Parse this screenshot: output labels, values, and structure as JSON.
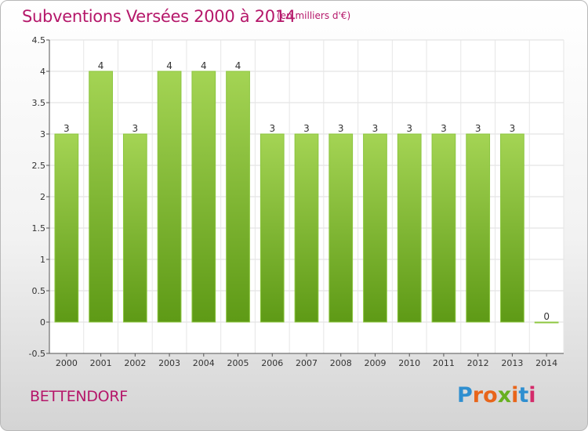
{
  "header": {
    "title": "Subventions Versées 2000 à 2014",
    "unit": "(en milliers d'€)"
  },
  "footer": {
    "commune": "BETTENDORF",
    "logo_text": "Proxiti"
  },
  "colors": {
    "title": "#b5176a",
    "bar_top": "#a4d454",
    "bar_bottom": "#5e9a16",
    "logo_letters": [
      "#2f8fd0",
      "#e8651a",
      "#e8651a",
      "#67b020",
      "#e8651a",
      "#2f8fd0",
      "#d42b6a"
    ]
  },
  "chart_data": {
    "type": "bar",
    "title": "Subventions Versées 2000 à 2014",
    "subtitle": "(en milliers d'€)",
    "categories": [
      "2000",
      "2001",
      "2002",
      "2003",
      "2004",
      "2005",
      "2006",
      "2007",
      "2008",
      "2009",
      "2010",
      "2011",
      "2012",
      "2013",
      "2014"
    ],
    "values": [
      3,
      4,
      3,
      4,
      4,
      4,
      3,
      3,
      3,
      3,
      3,
      3,
      3,
      3,
      0
    ],
    "data_labels": [
      "3",
      "4",
      "3",
      "4",
      "4",
      "4",
      "3",
      "3",
      "3",
      "3",
      "3",
      "3",
      "3",
      "3",
      "0"
    ],
    "yticks": [
      -0.5,
      0,
      0.5,
      1,
      1.5,
      2,
      2.5,
      3,
      3.5,
      4,
      4.5
    ],
    "ytick_labels": [
      "-0.5",
      "0",
      "0.5",
      "1",
      "1.5",
      "2",
      "2.5",
      "3",
      "3.5",
      "4",
      "4.5"
    ],
    "ylim": [
      -0.5,
      4.5
    ],
    "grid": true
  }
}
